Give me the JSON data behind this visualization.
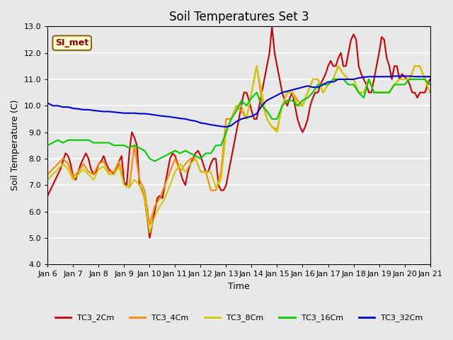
{
  "title": "Soil Temperatures Set 3",
  "xlabel": "Time",
  "ylabel": "Soil Temperature (C)",
  "ylim": [
    4.0,
    13.0
  ],
  "xlim": [
    0,
    15
  ],
  "xtick_labels": [
    "Jan 6",
    "Jan 7",
    "Jan 8",
    "Jan 9",
    "Jan 10",
    "Jan 11",
    "Jan 12",
    "Jan 13",
    "Jan 14",
    "Jan 15",
    "Jan 16",
    "Jan 17",
    "Jan 18",
    "Jan 19",
    "Jan 20",
    "Jan 21"
  ],
  "ytick_labels": [
    "4.0",
    "5.0",
    "6.0",
    "7.0",
    "8.0",
    "9.0",
    "10.0",
    "11.0",
    "12.0",
    "13.0"
  ],
  "yticks": [
    4.0,
    5.0,
    6.0,
    7.0,
    8.0,
    9.0,
    10.0,
    11.0,
    12.0,
    13.0
  ],
  "background_color": "#e8e8e8",
  "si_met_label": "SI_met",
  "legend_entries": [
    "TC3_2Cm",
    "TC3_4Cm",
    "TC3_8Cm",
    "TC3_16Cm",
    "TC3_32Cm"
  ],
  "line_colors": [
    "#cc0000",
    "#ff8800",
    "#cccc00",
    "#00cc00",
    "#0000cc"
  ],
  "TC3_2Cm_x": [
    0.0,
    0.1,
    0.2,
    0.3,
    0.4,
    0.5,
    0.6,
    0.7,
    0.8,
    0.9,
    1.0,
    1.1,
    1.2,
    1.3,
    1.4,
    1.5,
    1.6,
    1.7,
    1.8,
    1.9,
    2.0,
    2.1,
    2.2,
    2.3,
    2.4,
    2.5,
    2.6,
    2.7,
    2.8,
    2.9,
    3.0,
    3.1,
    3.2,
    3.3,
    3.4,
    3.5,
    3.6,
    3.7,
    3.8,
    3.9,
    4.0,
    4.1,
    4.2,
    4.3,
    4.4,
    4.5,
    4.6,
    4.7,
    4.8,
    4.9,
    5.0,
    5.1,
    5.2,
    5.3,
    5.4,
    5.5,
    5.6,
    5.7,
    5.8,
    5.9,
    6.0,
    6.1,
    6.2,
    6.3,
    6.4,
    6.5,
    6.6,
    6.7,
    6.8,
    6.9,
    7.0,
    7.1,
    7.2,
    7.3,
    7.4,
    7.5,
    7.6,
    7.7,
    7.8,
    7.9,
    8.0,
    8.1,
    8.2,
    8.3,
    8.4,
    8.5,
    8.6,
    8.7,
    8.8,
    8.9,
    9.0,
    9.1,
    9.2,
    9.3,
    9.4,
    9.5,
    9.6,
    9.7,
    9.8,
    9.9,
    10.0,
    10.1,
    10.2,
    10.3,
    10.4,
    10.5,
    10.6,
    10.7,
    10.8,
    10.9,
    11.0,
    11.1,
    11.2,
    11.3,
    11.4,
    11.5,
    11.6,
    11.7,
    11.8,
    11.9,
    12.0,
    12.1,
    12.2,
    12.3,
    12.4,
    12.5,
    12.6,
    12.7,
    12.8,
    12.9,
    13.0,
    13.1,
    13.2,
    13.3,
    13.4,
    13.5,
    13.6,
    13.7,
    13.8,
    13.9,
    14.0,
    14.1,
    14.2,
    14.3,
    14.4,
    14.5,
    14.6,
    14.7,
    14.8,
    14.9,
    15.0
  ],
  "TC3_2Cm_y": [
    6.6,
    6.8,
    7.0,
    7.2,
    7.4,
    7.6,
    7.9,
    8.2,
    8.1,
    7.8,
    7.3,
    7.2,
    7.5,
    7.8,
    8.0,
    8.2,
    8.0,
    7.6,
    7.4,
    7.5,
    7.8,
    7.9,
    8.1,
    7.8,
    7.6,
    7.5,
    7.4,
    7.6,
    7.9,
    8.1,
    7.1,
    7.0,
    8.2,
    9.0,
    8.8,
    8.5,
    7.0,
    6.8,
    6.5,
    5.8,
    5.0,
    5.5,
    6.0,
    6.5,
    6.6,
    6.5,
    7.0,
    7.5,
    8.0,
    8.2,
    8.1,
    7.8,
    7.5,
    7.2,
    7.0,
    7.5,
    7.8,
    8.0,
    8.2,
    8.3,
    8.1,
    7.8,
    7.5,
    7.5,
    7.8,
    8.0,
    8.0,
    7.0,
    6.8,
    6.8,
    7.0,
    7.5,
    8.0,
    8.5,
    9.0,
    9.5,
    10.0,
    10.5,
    10.5,
    10.2,
    9.8,
    9.5,
    9.5,
    10.0,
    10.5,
    11.0,
    11.5,
    12.0,
    13.0,
    12.0,
    11.5,
    11.0,
    10.5,
    10.2,
    10.0,
    10.3,
    10.5,
    10.0,
    9.5,
    9.2,
    9.0,
    9.2,
    9.5,
    10.0,
    10.3,
    10.5,
    10.5,
    10.8,
    11.0,
    11.2,
    11.5,
    11.7,
    11.5,
    11.5,
    11.8,
    12.0,
    11.5,
    11.5,
    12.0,
    12.5,
    12.7,
    12.5,
    11.5,
    11.2,
    11.0,
    10.8,
    10.5,
    10.5,
    11.0,
    11.5,
    12.0,
    12.6,
    12.5,
    11.8,
    11.5,
    11.0,
    11.5,
    11.5,
    11.0,
    11.2,
    11.1,
    11.0,
    10.8,
    10.5,
    10.5,
    10.3,
    10.5,
    10.5,
    10.5,
    10.8,
    11.0
  ],
  "TC3_4Cm_x": [
    0.0,
    0.2,
    0.4,
    0.6,
    0.8,
    1.0,
    1.2,
    1.4,
    1.6,
    1.8,
    2.0,
    2.2,
    2.4,
    2.6,
    2.8,
    3.0,
    3.2,
    3.4,
    3.6,
    3.8,
    4.0,
    4.2,
    4.4,
    4.6,
    4.8,
    5.0,
    5.2,
    5.4,
    5.6,
    5.8,
    6.0,
    6.2,
    6.4,
    6.6,
    6.8,
    7.0,
    7.2,
    7.4,
    7.6,
    7.8,
    8.0,
    8.2,
    8.4,
    8.6,
    8.8,
    9.0,
    9.2,
    9.4,
    9.6,
    9.8,
    10.0,
    10.2,
    10.4,
    10.6,
    10.8,
    11.0,
    11.2,
    11.4,
    11.6,
    11.8,
    12.0,
    12.2,
    12.4,
    12.6,
    12.8,
    13.0,
    13.2,
    13.4,
    13.6,
    13.8,
    14.0,
    14.2,
    14.4,
    14.6,
    14.8,
    15.0
  ],
  "TC3_4Cm_y": [
    7.4,
    7.6,
    7.8,
    8.0,
    7.8,
    7.3,
    7.5,
    7.8,
    7.5,
    7.4,
    7.8,
    7.9,
    7.5,
    7.5,
    7.9,
    7.0,
    6.9,
    8.5,
    7.2,
    6.8,
    5.5,
    6.2,
    6.5,
    7.0,
    7.5,
    8.0,
    7.5,
    7.8,
    8.0,
    8.0,
    7.5,
    7.5,
    6.8,
    6.8,
    7.5,
    9.5,
    9.5,
    10.0,
    9.8,
    9.5,
    10.5,
    11.5,
    10.2,
    9.5,
    9.2,
    9.1,
    10.0,
    10.5,
    10.5,
    10.2,
    10.0,
    10.5,
    11.0,
    11.0,
    10.5,
    10.8,
    11.0,
    11.5,
    11.2,
    11.0,
    11.0,
    10.5,
    10.5,
    11.0,
    10.5,
    10.5,
    10.5,
    10.5,
    10.8,
    11.0,
    11.0,
    11.0,
    11.5,
    11.5,
    11.0,
    10.5
  ],
  "TC3_8Cm_x": [
    0.0,
    0.2,
    0.4,
    0.6,
    0.8,
    1.0,
    1.2,
    1.4,
    1.6,
    1.8,
    2.0,
    2.2,
    2.4,
    2.6,
    2.8,
    3.0,
    3.2,
    3.4,
    3.6,
    3.8,
    4.0,
    4.2,
    4.4,
    4.6,
    4.8,
    5.0,
    5.2,
    5.4,
    5.6,
    5.8,
    6.0,
    6.2,
    6.4,
    6.6,
    6.8,
    7.0,
    7.2,
    7.4,
    7.6,
    7.8,
    8.0,
    8.2,
    8.4,
    8.6,
    8.8,
    9.0,
    9.2,
    9.4,
    9.6,
    9.8,
    10.0,
    10.2,
    10.4,
    10.6,
    10.8,
    11.0,
    11.2,
    11.4,
    11.6,
    11.8,
    12.0,
    12.2,
    12.4,
    12.6,
    12.8,
    13.0,
    13.2,
    13.4,
    13.6,
    13.8,
    14.0,
    14.2,
    14.4,
    14.6,
    14.8,
    15.0
  ],
  "TC3_8Cm_y": [
    7.2,
    7.4,
    7.6,
    7.8,
    7.6,
    7.2,
    7.4,
    7.6,
    7.4,
    7.2,
    7.6,
    7.7,
    7.4,
    7.4,
    7.7,
    7.0,
    6.9,
    7.2,
    7.0,
    6.5,
    5.2,
    5.8,
    6.2,
    6.5,
    7.0,
    7.5,
    7.8,
    7.5,
    7.8,
    8.0,
    7.5,
    7.5,
    7.5,
    6.9,
    7.2,
    9.0,
    9.5,
    10.0,
    10.0,
    9.5,
    10.5,
    11.5,
    10.5,
    9.5,
    9.2,
    9.0,
    10.0,
    10.5,
    10.5,
    10.0,
    10.0,
    10.5,
    11.0,
    11.0,
    10.5,
    10.8,
    11.0,
    11.5,
    11.2,
    11.0,
    11.0,
    10.5,
    10.5,
    11.0,
    10.5,
    10.5,
    10.5,
    10.5,
    10.8,
    11.0,
    11.0,
    11.0,
    11.5,
    11.5,
    11.0,
    10.5
  ],
  "TC3_16Cm_x": [
    0.0,
    0.2,
    0.4,
    0.6,
    0.8,
    1.0,
    1.2,
    1.4,
    1.6,
    1.8,
    2.0,
    2.2,
    2.4,
    2.6,
    2.8,
    3.0,
    3.2,
    3.4,
    3.6,
    3.8,
    4.0,
    4.2,
    4.4,
    4.6,
    4.8,
    5.0,
    5.2,
    5.4,
    5.6,
    5.8,
    6.0,
    6.2,
    6.4,
    6.6,
    6.8,
    7.0,
    7.2,
    7.4,
    7.6,
    7.8,
    8.0,
    8.2,
    8.4,
    8.6,
    8.8,
    9.0,
    9.2,
    9.4,
    9.6,
    9.8,
    10.0,
    10.2,
    10.4,
    10.6,
    10.8,
    11.0,
    11.2,
    11.4,
    11.6,
    11.8,
    12.0,
    12.2,
    12.4,
    12.6,
    12.8,
    13.0,
    13.2,
    13.4,
    13.6,
    13.8,
    14.0,
    14.2,
    14.4,
    14.6,
    14.8,
    15.0
  ],
  "TC3_16Cm_y": [
    8.5,
    8.6,
    8.7,
    8.6,
    8.7,
    8.7,
    8.7,
    8.7,
    8.7,
    8.6,
    8.6,
    8.6,
    8.6,
    8.5,
    8.5,
    8.5,
    8.4,
    8.5,
    8.4,
    8.3,
    8.0,
    7.9,
    8.0,
    8.1,
    8.2,
    8.3,
    8.2,
    8.3,
    8.2,
    8.1,
    8.0,
    8.2,
    8.2,
    8.5,
    8.5,
    9.0,
    9.5,
    9.8,
    10.2,
    10.0,
    10.3,
    10.5,
    10.0,
    9.8,
    9.5,
    9.5,
    10.0,
    10.2,
    10.2,
    10.0,
    10.2,
    10.3,
    10.5,
    10.8,
    10.8,
    10.8,
    11.0,
    11.0,
    11.0,
    10.8,
    10.8,
    10.5,
    10.3,
    11.0,
    10.5,
    10.5,
    10.5,
    10.5,
    10.8,
    10.8,
    10.8,
    11.0,
    11.0,
    11.0,
    11.0,
    10.8
  ],
  "TC3_32Cm_x": [
    0.0,
    0.2,
    0.4,
    0.6,
    0.8,
    1.0,
    1.2,
    1.4,
    1.6,
    1.8,
    2.0,
    2.2,
    2.4,
    2.6,
    2.8,
    3.0,
    3.2,
    3.4,
    3.6,
    3.8,
    4.0,
    4.2,
    4.4,
    4.6,
    4.8,
    5.0,
    5.2,
    5.4,
    5.6,
    5.8,
    6.0,
    6.2,
    6.4,
    6.6,
    6.8,
    7.0,
    7.2,
    7.4,
    7.6,
    7.8,
    8.0,
    8.2,
    8.4,
    8.6,
    8.8,
    9.0,
    9.2,
    9.4,
    9.6,
    9.8,
    10.0,
    10.2,
    10.4,
    10.6,
    10.8,
    11.0,
    11.2,
    11.4,
    11.6,
    11.8,
    12.0,
    12.2,
    12.4,
    12.6,
    12.8,
    13.0,
    13.2,
    13.4,
    13.6,
    13.8,
    14.0,
    14.2,
    14.4,
    14.6,
    14.8,
    15.0
  ],
  "TC3_32Cm_y": [
    10.1,
    10.0,
    10.0,
    9.95,
    9.95,
    9.9,
    9.88,
    9.85,
    9.85,
    9.82,
    9.8,
    9.78,
    9.78,
    9.76,
    9.74,
    9.72,
    9.72,
    9.72,
    9.7,
    9.7,
    9.68,
    9.65,
    9.62,
    9.6,
    9.58,
    9.55,
    9.52,
    9.5,
    9.45,
    9.42,
    9.35,
    9.32,
    9.28,
    9.25,
    9.22,
    9.2,
    9.25,
    9.4,
    9.5,
    9.55,
    9.6,
    9.7,
    10.0,
    10.2,
    10.3,
    10.4,
    10.5,
    10.55,
    10.6,
    10.65,
    10.7,
    10.75,
    10.7,
    10.7,
    10.8,
    10.9,
    10.9,
    11.0,
    11.0,
    11.0,
    11.0,
    11.05,
    11.08,
    11.1,
    11.1,
    11.1,
    11.1,
    11.1,
    11.12,
    11.12,
    11.12,
    11.12,
    11.1,
    11.1,
    11.1,
    11.1
  ]
}
